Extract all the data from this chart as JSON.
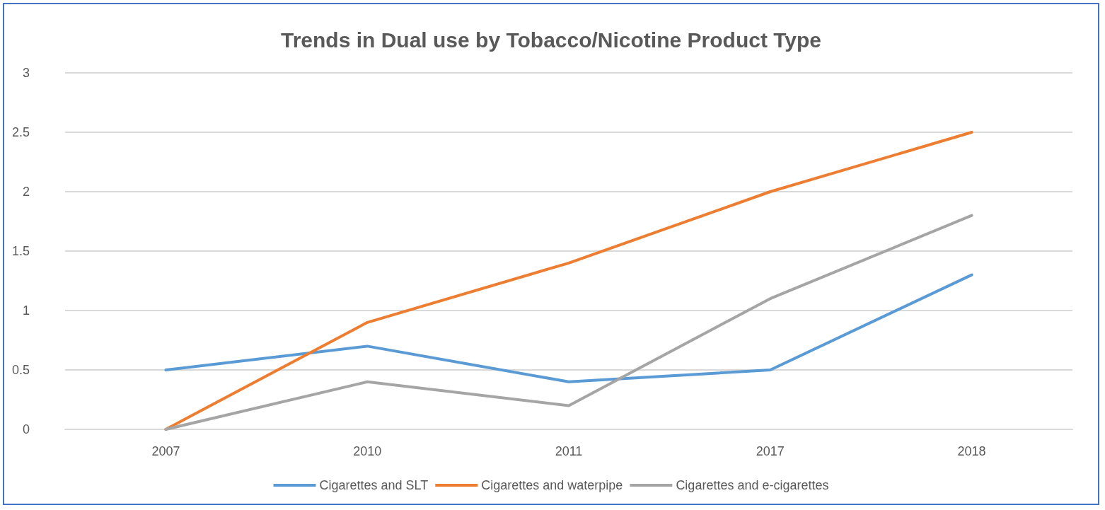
{
  "chart_data": {
    "type": "line",
    "title": "Trends in Dual use by Tobacco/Nicotine Product Type",
    "categories": [
      "2007",
      "2010",
      "2011",
      "2017",
      "2018"
    ],
    "series": [
      {
        "name": "Cigarettes and SLT",
        "color": "#5b9bd5",
        "values": [
          0.5,
          0.7,
          0.4,
          0.5,
          1.3
        ]
      },
      {
        "name": "Cigarettes and waterpipe",
        "color": "#ed7d31",
        "values": [
          0,
          0.9,
          1.4,
          2,
          2.5
        ]
      },
      {
        "name": "Cigarettes and e-cigarettes",
        "color": "#a5a5a5",
        "values": [
          0,
          0.4,
          0.2,
          1.1,
          1.8
        ]
      }
    ],
    "ylim": [
      0,
      3
    ],
    "yticks": [
      0,
      0.5,
      1,
      1.5,
      2,
      2.5,
      3
    ],
    "grid": "y",
    "legend": "bottom",
    "marker": "none",
    "line_style": "solid"
  }
}
